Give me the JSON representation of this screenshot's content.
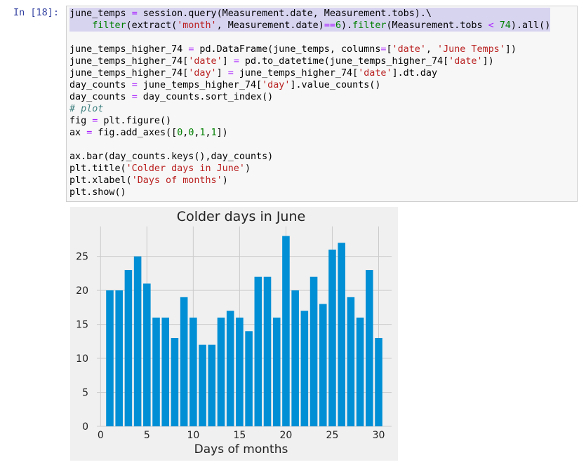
{
  "cell": {
    "prompt": "In [18]:",
    "lines": [
      [
        {
          "t": "june_temps ",
          "c": ""
        },
        {
          "t": "=",
          "c": "op"
        },
        {
          "t": " session.query(Measurement.date, Measurement.tobs).\\",
          "c": ""
        }
      ],
      [
        {
          "t": "    ",
          "c": ""
        },
        {
          "t": "filter",
          "c": "kw"
        },
        {
          "t": "(extract(",
          "c": ""
        },
        {
          "t": "'month'",
          "c": "str"
        },
        {
          "t": ", Measurement.date)",
          "c": ""
        },
        {
          "t": "==",
          "c": "op"
        },
        {
          "t": "6",
          "c": "num"
        },
        {
          "t": ").",
          "c": ""
        },
        {
          "t": "filter",
          "c": "kw"
        },
        {
          "t": "(Measurement.tobs ",
          "c": ""
        },
        {
          "t": "<",
          "c": "op"
        },
        {
          "t": " ",
          "c": ""
        },
        {
          "t": "74",
          "c": "num"
        },
        {
          "t": ").all()",
          "c": ""
        }
      ],
      [],
      [
        {
          "t": "june_temps_higher_74 ",
          "c": ""
        },
        {
          "t": "=",
          "c": "op"
        },
        {
          "t": " pd.DataFrame(june_temps, columns",
          "c": ""
        },
        {
          "t": "=",
          "c": "op"
        },
        {
          "t": "[",
          "c": ""
        },
        {
          "t": "'date'",
          "c": "str"
        },
        {
          "t": ", ",
          "c": ""
        },
        {
          "t": "'June Temps'",
          "c": "str"
        },
        {
          "t": "])",
          "c": ""
        }
      ],
      [
        {
          "t": "june_temps_higher_74[",
          "c": ""
        },
        {
          "t": "'date'",
          "c": "str"
        },
        {
          "t": "] ",
          "c": ""
        },
        {
          "t": "=",
          "c": "op"
        },
        {
          "t": " pd.to_datetime(june_temps_higher_74[",
          "c": ""
        },
        {
          "t": "'date'",
          "c": "str"
        },
        {
          "t": "])",
          "c": ""
        }
      ],
      [
        {
          "t": "june_temps_higher_74[",
          "c": ""
        },
        {
          "t": "'day'",
          "c": "str"
        },
        {
          "t": "] ",
          "c": ""
        },
        {
          "t": "=",
          "c": "op"
        },
        {
          "t": " june_temps_higher_74[",
          "c": ""
        },
        {
          "t": "'date'",
          "c": "str"
        },
        {
          "t": "].dt.day",
          "c": ""
        }
      ],
      [
        {
          "t": "day_counts ",
          "c": ""
        },
        {
          "t": "=",
          "c": "op"
        },
        {
          "t": " june_temps_higher_74[",
          "c": ""
        },
        {
          "t": "'day'",
          "c": "str"
        },
        {
          "t": "].value_counts()",
          "c": ""
        }
      ],
      [
        {
          "t": "day_counts ",
          "c": ""
        },
        {
          "t": "=",
          "c": "op"
        },
        {
          "t": " day_counts.sort_index()",
          "c": ""
        }
      ],
      [
        {
          "t": "# plot",
          "c": "com"
        }
      ],
      [
        {
          "t": "fig ",
          "c": ""
        },
        {
          "t": "=",
          "c": "op"
        },
        {
          "t": " plt.figure()",
          "c": ""
        }
      ],
      [
        {
          "t": "ax ",
          "c": ""
        },
        {
          "t": "=",
          "c": "op"
        },
        {
          "t": " fig.add_axes([",
          "c": ""
        },
        {
          "t": "0",
          "c": "num"
        },
        {
          "t": ",",
          "c": ""
        },
        {
          "t": "0",
          "c": "num"
        },
        {
          "t": ",",
          "c": ""
        },
        {
          "t": "1",
          "c": "num"
        },
        {
          "t": ",",
          "c": ""
        },
        {
          "t": "1",
          "c": "num"
        },
        {
          "t": "])",
          "c": ""
        }
      ],
      [],
      [
        {
          "t": "ax.bar(day_counts.keys(),day_counts)",
          "c": ""
        }
      ],
      [
        {
          "t": "plt.title(",
          "c": ""
        },
        {
          "t": "'Colder days in June'",
          "c": "str"
        },
        {
          "t": ")",
          "c": ""
        }
      ],
      [
        {
          "t": "plt.xlabel(",
          "c": ""
        },
        {
          "t": "'Days of months'",
          "c": "str"
        },
        {
          "t": ")",
          "c": ""
        }
      ],
      [
        {
          "t": "plt.show()",
          "c": ""
        }
      ]
    ]
  },
  "chart_data": {
    "type": "bar",
    "title": "Colder days in June",
    "xlabel": "Days of months",
    "ylabel": "",
    "x": [
      1,
      2,
      3,
      4,
      5,
      6,
      7,
      8,
      9,
      10,
      11,
      12,
      13,
      14,
      15,
      16,
      17,
      18,
      19,
      20,
      21,
      22,
      23,
      24,
      25,
      26,
      27,
      28,
      29,
      30
    ],
    "values": [
      20,
      20,
      23,
      25,
      21,
      16,
      16,
      13,
      19,
      16,
      12,
      12,
      16,
      17,
      16,
      14,
      22,
      22,
      16,
      28,
      20,
      17,
      22,
      18,
      26,
      27,
      19,
      16,
      23,
      13
    ],
    "xticks": [
      "0",
      "5",
      "10",
      "15",
      "20",
      "25",
      "30"
    ],
    "yticks": [
      "0",
      "5",
      "10",
      "15",
      "20",
      "25"
    ],
    "xlim": [
      -0.4,
      31.4
    ],
    "ylim": [
      0,
      29.4
    ],
    "grid": true,
    "bar_color": "#008fd5",
    "background": "#f0f0f0",
    "grid_color": "#cbcbcb"
  }
}
